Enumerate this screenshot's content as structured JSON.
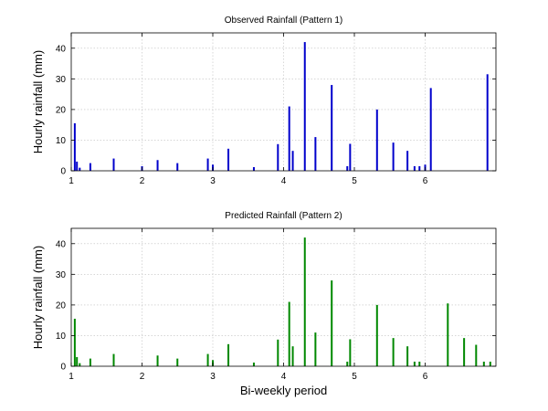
{
  "chart_data": [
    {
      "type": "bar",
      "title": "Observed Rainfall (Pattern 1)",
      "xlabel": "",
      "ylabel": "Hourly rainfall (mm)",
      "xlim": [
        1,
        7
      ],
      "ylim": [
        0,
        45
      ],
      "xticks": [
        1,
        2,
        3,
        4,
        5,
        6
      ],
      "yticks": [
        0,
        10,
        20,
        30,
        40
      ],
      "grid": true,
      "color": "#0000cc",
      "x": [
        1.05,
        1.08,
        1.12,
        1.27,
        1.6,
        2.0,
        2.22,
        2.5,
        2.93,
        3.0,
        3.22,
        3.58,
        3.92,
        4.08,
        4.13,
        4.3,
        4.45,
        4.68,
        4.9,
        4.94,
        5.32,
        5.55,
        5.75,
        5.85,
        5.92,
        6.0,
        6.08,
        6.88
      ],
      "values": [
        15.5,
        3,
        1,
        2.5,
        4,
        1.5,
        3.5,
        2.5,
        4,
        2,
        7.2,
        1.2,
        8.7,
        21,
        6.5,
        42,
        11,
        28,
        1.5,
        8.8,
        20,
        9.2,
        6.5,
        1.5,
        1.5,
        2,
        27,
        31.5
      ]
    },
    {
      "type": "bar",
      "title": "Predicted Rainfall (Pattern 2)",
      "xlabel": "Bi-weekly period",
      "ylabel": "Hourly rainfall (mm)",
      "xlim": [
        1,
        7
      ],
      "ylim": [
        0,
        45
      ],
      "xticks": [
        1,
        2,
        3,
        4,
        5,
        6
      ],
      "yticks": [
        0,
        10,
        20,
        30,
        40
      ],
      "grid": true,
      "color": "#008800",
      "x": [
        1.05,
        1.08,
        1.12,
        1.27,
        1.6,
        2.22,
        2.5,
        2.93,
        3.0,
        3.22,
        3.58,
        3.92,
        4.08,
        4.13,
        4.3,
        4.45,
        4.68,
        4.9,
        4.94,
        5.32,
        5.55,
        5.75,
        5.85,
        5.92,
        6.32,
        6.55,
        6.72,
        6.83,
        6.92
      ],
      "values": [
        15.5,
        3,
        1,
        2.5,
        4,
        3.5,
        2.5,
        4,
        2,
        7.2,
        1.2,
        8.7,
        21,
        6.5,
        42,
        11,
        28,
        1.5,
        8.8,
        20,
        9.2,
        6.5,
        1.5,
        1.5,
        20.5,
        9.2,
        7,
        1.5,
        1.5
      ]
    }
  ]
}
